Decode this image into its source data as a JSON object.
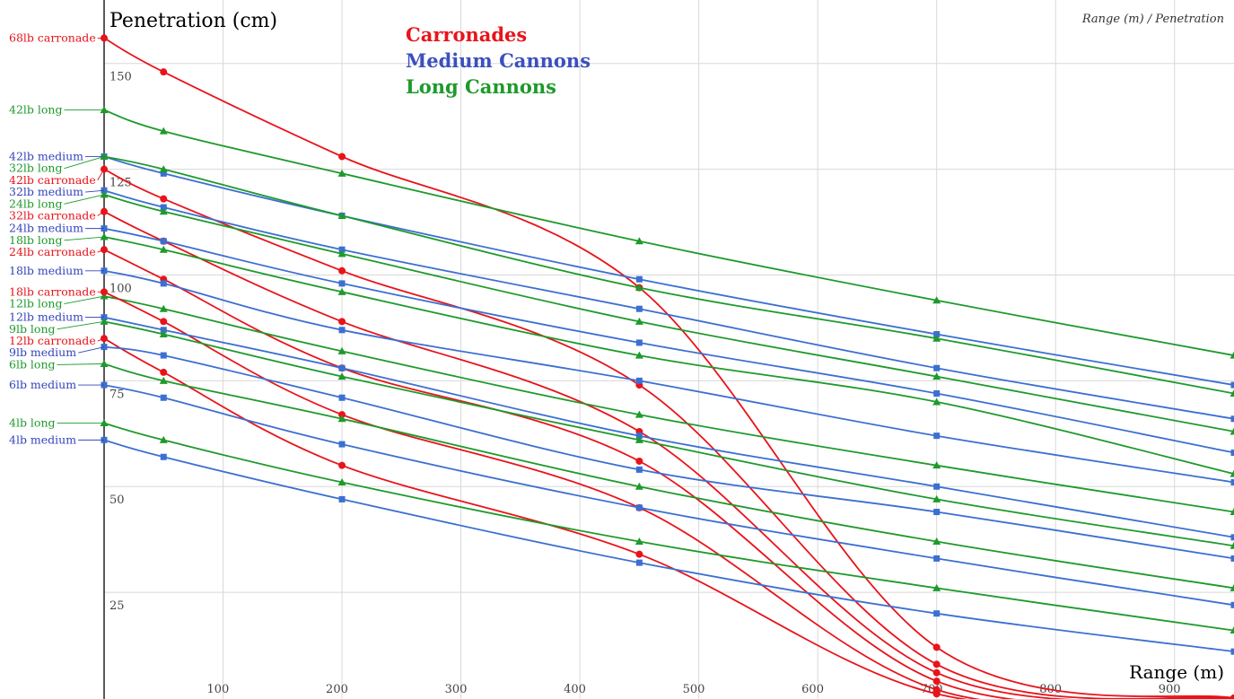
{
  "chart_data": {
    "type": "line",
    "title": "Penetration (cm)",
    "xlabel": "Range (m)",
    "caption": "Range (m) / Penetration",
    "xlim": [
      0,
      950
    ],
    "ylim": [
      0,
      165
    ],
    "x_ticks": [
      100,
      200,
      300,
      400,
      500,
      600,
      700,
      800,
      900
    ],
    "y_ticks": [
      25,
      50,
      75,
      100,
      125,
      150
    ],
    "legend": [
      {
        "label": "Carronades",
        "color": "#e8141b"
      },
      {
        "label": "Medium Cannons",
        "color": "#3b4fbf"
      },
      {
        "label": "Long Cannons",
        "color": "#1e9a2b"
      }
    ],
    "colors": {
      "carronade": "#e8141b",
      "medium": "#3b6fd1",
      "long": "#1e9a2b",
      "medium_label": "#3344bb",
      "grid": "#d8d8d8"
    },
    "x": [
      0,
      50,
      200,
      450,
      700,
      950
    ],
    "series": [
      {
        "name": "68lb carronade",
        "kind": "carronade",
        "values": [
          156,
          148,
          128,
          97,
          12,
          0
        ]
      },
      {
        "name": "42lb long",
        "kind": "long",
        "values": [
          139,
          134,
          124,
          108,
          94,
          81
        ]
      },
      {
        "name": "42lb medium",
        "kind": "medium",
        "values": [
          128,
          124,
          114,
          99,
          86,
          74
        ]
      },
      {
        "name": "32lb long",
        "kind": "long",
        "values": [
          128,
          125,
          114,
          97,
          85,
          72
        ]
      },
      {
        "name": "42lb carronade",
        "kind": "carronade",
        "values": [
          125,
          118,
          101,
          74,
          8,
          0
        ]
      },
      {
        "name": "32lb medium",
        "kind": "medium",
        "values": [
          120,
          116,
          106,
          92,
          78,
          66
        ]
      },
      {
        "name": "24lb long",
        "kind": "long",
        "values": [
          119,
          115,
          105,
          89,
          76,
          63
        ]
      },
      {
        "name": "32lb carronade",
        "kind": "carronade",
        "values": [
          115,
          108,
          89,
          63,
          6,
          0
        ]
      },
      {
        "name": "24lb medium",
        "kind": "medium",
        "values": [
          111,
          108,
          98,
          84,
          72,
          58
        ]
      },
      {
        "name": "18lb long",
        "kind": "long",
        "values": [
          109,
          106,
          96,
          81,
          70,
          53
        ]
      },
      {
        "name": "24lb carronade",
        "kind": "carronade",
        "values": [
          106,
          99,
          78,
          56,
          4,
          0
        ]
      },
      {
        "name": "18lb medium",
        "kind": "medium",
        "values": [
          101,
          98,
          87,
          75,
          62,
          51
        ]
      },
      {
        "name": "12lb long",
        "kind": "long",
        "values": [
          95,
          92,
          82,
          67,
          55,
          44
        ]
      },
      {
        "name": "18lb carronade",
        "kind": "carronade",
        "values": [
          96,
          89,
          67,
          45,
          2,
          0
        ]
      },
      {
        "name": "12lb medium",
        "kind": "medium",
        "values": [
          90,
          87,
          78,
          62,
          50,
          38
        ]
      },
      {
        "name": "9lb long",
        "kind": "long",
        "values": [
          89,
          86,
          76,
          61,
          47,
          36
        ]
      },
      {
        "name": "12lb carronade",
        "kind": "carronade",
        "values": [
          85,
          77,
          55,
          34,
          1,
          0
        ]
      },
      {
        "name": "9lb medium",
        "kind": "medium",
        "values": [
          83,
          81,
          71,
          54,
          44,
          33
        ]
      },
      {
        "name": "6lb long",
        "kind": "long",
        "values": [
          79,
          75,
          66,
          50,
          37,
          26
        ]
      },
      {
        "name": "6lb medium",
        "kind": "medium",
        "values": [
          74,
          71,
          60,
          45,
          33,
          22
        ]
      },
      {
        "name": "4lb long",
        "kind": "long",
        "values": [
          65,
          61,
          51,
          37,
          26,
          16
        ]
      },
      {
        "name": "4lb medium",
        "kind": "medium",
        "values": [
          61,
          57,
          47,
          32,
          20,
          11
        ]
      }
    ]
  }
}
